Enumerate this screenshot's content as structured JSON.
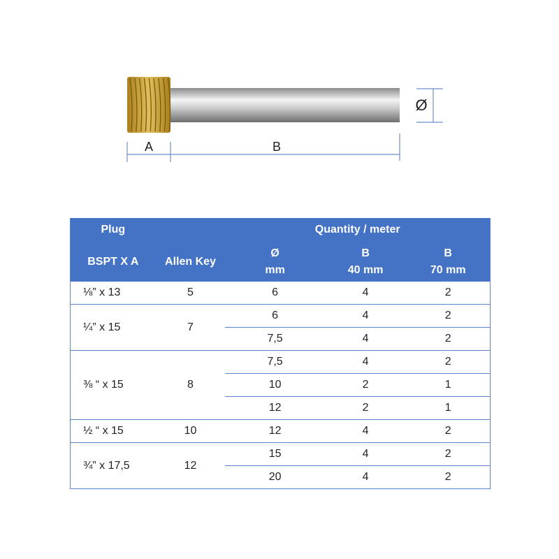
{
  "diagram": {
    "label_a": "A",
    "label_b": "B",
    "label_diameter": "Ø",
    "colors": {
      "thread": "#c9a13a",
      "rod": "#c8c8c8",
      "dimension_lines": "#6b8fcf"
    }
  },
  "table": {
    "header": {
      "plug": "Plug",
      "bspt": "BSPT X A",
      "allen": "Allen Key",
      "quantity": "Quantity / meter",
      "dia_top": "Ø",
      "dia_bottom": "mm",
      "b40_top": "B",
      "b40_bottom": "40 mm",
      "b70_top": "B",
      "b70_bottom": "70 mm"
    },
    "header_color": "#4472c4",
    "groups": [
      {
        "plug": "⅛” x 13",
        "allen": "5",
        "rows": [
          {
            "dia": "6",
            "b40": "4",
            "b70": "2"
          }
        ]
      },
      {
        "plug": "¼” x 15",
        "allen": "7",
        "rows": [
          {
            "dia": "6",
            "b40": "4",
            "b70": "2"
          },
          {
            "dia": "7,5",
            "b40": "4",
            "b70": "2"
          }
        ]
      },
      {
        "plug": "⅜ “ x 15",
        "allen": "8",
        "rows": [
          {
            "dia": "7,5",
            "b40": "4",
            "b70": "2"
          },
          {
            "dia": "10",
            "b40": "2",
            "b70": "1"
          },
          {
            "dia": "12",
            "b40": "2",
            "b70": "1"
          }
        ]
      },
      {
        "plug": "½ “ x 15",
        "allen": "10",
        "rows": [
          {
            "dia": "12",
            "b40": "4",
            "b70": "2"
          }
        ]
      },
      {
        "plug": "¾” x 17,5",
        "allen": "12",
        "rows": [
          {
            "dia": "15",
            "b40": "4",
            "b70": "2"
          },
          {
            "dia": "20",
            "b40": "4",
            "b70": "2"
          }
        ]
      }
    ]
  }
}
